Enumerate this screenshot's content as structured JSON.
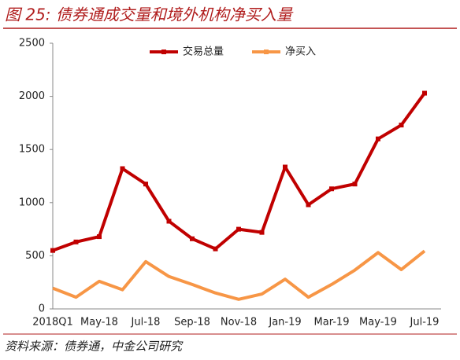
{
  "chart_data": {
    "type": "line",
    "title": "图 25: 债券通成交量和境外机构净买入量",
    "source": "资料来源：债券通，中金公司研究",
    "categories": [
      "2018Q1",
      null,
      "May-18",
      null,
      "Jul-18",
      null,
      "Sep-18",
      null,
      "Nov-18",
      null,
      "Jan-19",
      null,
      "Mar-19",
      null,
      "May-19",
      null,
      "Jul-19"
    ],
    "series": [
      {
        "name": "交易总量",
        "color": "#c00000",
        "values": [
          550,
          630,
          680,
          1320,
          1175,
          825,
          660,
          565,
          750,
          720,
          1335,
          980,
          1130,
          1175,
          1600,
          1730,
          2030
        ]
      },
      {
        "name": "净买入",
        "color": "#f79646",
        "values": [
          195,
          110,
          260,
          180,
          445,
          305,
          230,
          150,
          90,
          140,
          280,
          110,
          230,
          365,
          530,
          370,
          545
        ]
      }
    ],
    "ylim": [
      0,
      2500
    ],
    "yticks": [
      0,
      500,
      1000,
      1500,
      2000,
      2500
    ],
    "legend": "top"
  }
}
